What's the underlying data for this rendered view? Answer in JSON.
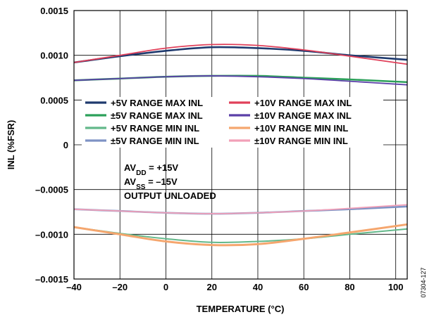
{
  "chart_data": {
    "type": "line",
    "xlabel": "TEMPERATURE (°C)",
    "ylabel": "INL (%FSR)",
    "xlim": [
      -40,
      105
    ],
    "ylim": [
      -0.0015,
      0.0015
    ],
    "x_ticks": [
      -40,
      -20,
      0,
      20,
      40,
      60,
      80,
      100
    ],
    "x_tick_labels": [
      "–40",
      "–20",
      "0",
      "20",
      "40",
      "60",
      "80",
      "100"
    ],
    "y_ticks": [
      0.0015,
      0.001,
      0.0005,
      0,
      -0.0005,
      -0.001,
      -0.0015
    ],
    "y_tick_labels": [
      "0.0015",
      "0.0010",
      "0.0005",
      "0",
      "–0.0005",
      "–0.0010",
      "–0.0015"
    ],
    "grid": "x-and-y-major",
    "legend_placement": "center",
    "annotations": [
      {
        "parts": [
          {
            "t": "AV"
          },
          {
            "t": "DD",
            "sub": true
          },
          {
            "t": " = +15V"
          }
        ]
      },
      {
        "parts": [
          {
            "t": "AV"
          },
          {
            "t": "SS",
            "sub": true
          },
          {
            "t": " = –15V"
          }
        ]
      },
      {
        "parts": [
          {
            "t": "OUTPUT UNLOADED"
          }
        ]
      }
    ],
    "figure_id": "07304-127",
    "series": [
      {
        "name": "+5V RANGE MAX INL",
        "color": "#1f3a6e",
        "x": [
          -40,
          -20,
          0,
          20,
          40,
          60,
          80,
          105
        ],
        "y": [
          0.00092,
          0.00099,
          0.00105,
          0.00109,
          0.00108,
          0.00105,
          0.001,
          0.00095
        ]
      },
      {
        "name": "+10V RANGE MAX INL",
        "color": "#e0405a",
        "x": [
          -40,
          -20,
          0,
          20,
          40,
          60,
          80,
          105
        ],
        "y": [
          0.00092,
          0.001,
          0.00108,
          0.00112,
          0.00111,
          0.00106,
          0.00099,
          0.0009
        ]
      },
      {
        "name": "±5V RANGE MAX INL",
        "color": "#2ca05a",
        "x": [
          -40,
          -20,
          0,
          20,
          40,
          60,
          80,
          105
        ],
        "y": [
          0.00072,
          0.00074,
          0.00076,
          0.00077,
          0.00077,
          0.00075,
          0.00073,
          0.0007
        ]
      },
      {
        "name": "±10V RANGE MAX INL",
        "color": "#5b3fa8",
        "x": [
          -40,
          -20,
          0,
          20,
          40,
          60,
          80,
          105
        ],
        "y": [
          0.00072,
          0.00074,
          0.00076,
          0.00077,
          0.00076,
          0.00074,
          0.00071,
          0.00067
        ]
      },
      {
        "name": "+5V RANGE MIN INL",
        "color": "#63b88a",
        "x": [
          -40,
          -20,
          0,
          20,
          40,
          60,
          80,
          105
        ],
        "y": [
          -0.00092,
          -0.00099,
          -0.00105,
          -0.00109,
          -0.00108,
          -0.00105,
          -0.001,
          -0.00094
        ]
      },
      {
        "name": "+10V RANGE MIN INL",
        "color": "#f5a66e",
        "x": [
          -40,
          -20,
          0,
          20,
          40,
          60,
          80,
          105
        ],
        "y": [
          -0.00092,
          -0.001,
          -0.00108,
          -0.00112,
          -0.00111,
          -0.00105,
          -0.00098,
          -0.00089
        ]
      },
      {
        "name": "±5V RANGE MIN INL",
        "color": "#7f93c5",
        "x": [
          -40,
          -20,
          0,
          20,
          40,
          60,
          80,
          105
        ],
        "y": [
          -0.00072,
          -0.00074,
          -0.00076,
          -0.00077,
          -0.00076,
          -0.00074,
          -0.00072,
          -0.00069
        ]
      },
      {
        "name": "±10V RANGE MIN INL",
        "color": "#f2a0b8",
        "x": [
          -40,
          -20,
          0,
          20,
          40,
          60,
          80,
          105
        ],
        "y": [
          -0.00072,
          -0.00074,
          -0.00076,
          -0.00077,
          -0.00076,
          -0.00074,
          -0.00071,
          -0.00067
        ]
      }
    ]
  }
}
